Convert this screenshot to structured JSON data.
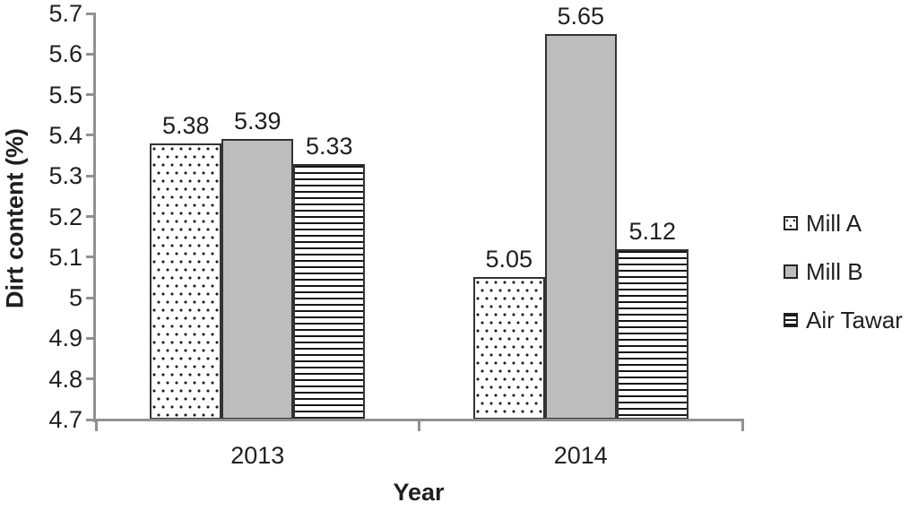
{
  "figure": {
    "background_color": "#ffffff",
    "axis_color": "#919191",
    "text_color": "#1f1f1f",
    "bar_border_color": "#333333"
  },
  "chart_data": {
    "type": "bar",
    "title": "",
    "xlabel": "Year",
    "ylabel": "Dirt content (%)",
    "categories": [
      "2013",
      "2014"
    ],
    "series": [
      {
        "name": "Mill A",
        "pattern": "dots",
        "fill": "#ffffff",
        "values": [
          5.38,
          5.05
        ]
      },
      {
        "name": "Mill B",
        "pattern": "solid",
        "fill": "#bdbdbd",
        "values": [
          5.39,
          5.65
        ]
      },
      {
        "name": "Air Tawar",
        "pattern": "hlines",
        "fill": "#ffffff",
        "values": [
          5.33,
          5.12
        ]
      }
    ],
    "ylim": [
      4.7,
      5.7
    ],
    "ytick_step": 0.1,
    "value_labels": true,
    "value_label_decimals": 2,
    "legend_position": "right",
    "grid": false
  }
}
